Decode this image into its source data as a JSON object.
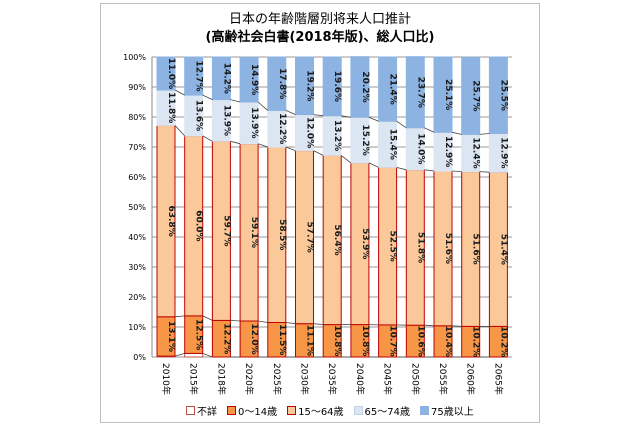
{
  "chart_data": {
    "type": "bar",
    "stacked": true,
    "title": "日本の年齢階層別将来人口推計",
    "subtitle": "(高齢社会白書(2018年版)、総人口比)",
    "categories": [
      "2010年",
      "2015年",
      "2018年",
      "2020年",
      "2025年",
      "2030年",
      "2035年",
      "2040年",
      "2045年",
      "2050年",
      "2055年",
      "2060年",
      "2065年"
    ],
    "ylim": [
      0,
      100
    ],
    "yticks": [
      "0%",
      "10%",
      "20%",
      "30%",
      "40%",
      "50%",
      "60%",
      "70%",
      "80%",
      "90%",
      "100%"
    ],
    "grid": true,
    "legend_position": "bottom",
    "series": [
      {
        "name": "不詳",
        "color": "#ffffff",
        "border": "#c0504d",
        "values": [
          0.3,
          1.2,
          0,
          0,
          0,
          0,
          0,
          0,
          0,
          0,
          0,
          0,
          0
        ],
        "labels": false
      },
      {
        "name": "0〜14歳",
        "color": "#f79646",
        "border": "#c00000",
        "values": [
          13.1,
          12.5,
          12.2,
          12.0,
          11.5,
          11.1,
          10.8,
          10.8,
          10.7,
          10.6,
          10.4,
          10.2,
          10.2
        ],
        "labels": true
      },
      {
        "name": "15〜64歳",
        "color": "#fbc89a",
        "border": "#c00000",
        "values": [
          63.8,
          60.0,
          59.7,
          59.1,
          58.5,
          57.7,
          56.4,
          53.9,
          52.5,
          51.8,
          51.6,
          51.6,
          51.4
        ],
        "labels": true
      },
      {
        "name": "65〜74歳",
        "color": "#dce6f2",
        "border": "#dce6f2",
        "values": [
          11.8,
          13.6,
          13.9,
          13.9,
          12.2,
          12.0,
          13.2,
          15.2,
          15.4,
          14.0,
          12.9,
          12.4,
          12.9
        ],
        "labels": true
      },
      {
        "name": "75歳以上",
        "color": "#8db3e2",
        "border": "#8db3e2",
        "values": [
          11.0,
          12.7,
          14.2,
          14.9,
          17.8,
          19.2,
          19.6,
          20.2,
          21.4,
          23.7,
          25.1,
          25.7,
          25.5
        ],
        "labels": true
      }
    ]
  }
}
